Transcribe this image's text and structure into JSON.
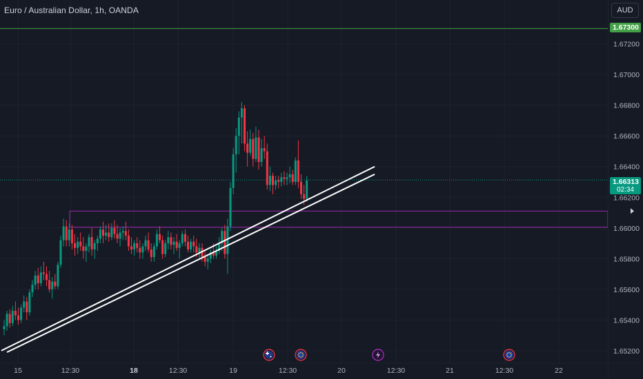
{
  "header": {
    "title": "Euro / Australian Dollar, 1h, OANDA",
    "currency_button": "AUD"
  },
  "price_axis": {
    "labels": [
      "1.67200",
      "1.67000",
      "1.66800",
      "1.66600",
      "1.66400",
      "1.66200",
      "1.66000",
      "1.65800",
      "1.65600",
      "1.65400",
      "1.65200"
    ],
    "alert_price": "1.67300",
    "last_price": "1.66313",
    "bar_countdown": "02:34"
  },
  "time_axis": {
    "labels": [
      {
        "text": "15",
        "bold": false
      },
      {
        "text": "12:30",
        "bold": false
      },
      {
        "text": "18",
        "bold": true
      },
      {
        "text": "12:30",
        "bold": false
      },
      {
        "text": "19",
        "bold": false
      },
      {
        "text": "12:30",
        "bold": false
      },
      {
        "text": "20",
        "bold": false
      },
      {
        "text": "12:30",
        "bold": false
      },
      {
        "text": "21",
        "bold": false
      },
      {
        "text": "12:30",
        "bold": false
      },
      {
        "text": "22",
        "bold": false
      }
    ]
  },
  "colors": {
    "background": "#161a25",
    "up": "#089981",
    "down": "#f23645",
    "alert_line": "#43a047",
    "zone": "#9c27b0",
    "trendline": "#ffffff"
  },
  "events": [
    {
      "icon": "flag-au-icon"
    },
    {
      "icon": "flag-eu-icon"
    },
    {
      "icon": "lightning-icon"
    },
    {
      "icon": "flag-eu-icon"
    }
  ],
  "chart_data": {
    "type": "candlestick",
    "symbol": "EURAUD",
    "interval": "1h",
    "ylim": [
      1.6515,
      1.6745
    ],
    "alert_level": 1.673,
    "last_price": 1.66313,
    "zone": {
      "top": 1.6611,
      "bottom": 1.66005
    },
    "trendlines": [
      {
        "from": {
          "bar": -1,
          "price": 1.652
        },
        "to": {
          "bar": 131,
          "price": 1.664
        }
      },
      {
        "from": {
          "bar": 1,
          "price": 1.6519
        },
        "to": {
          "bar": 131,
          "price": 1.6635
        }
      }
    ],
    "candles": [
      [
        1.6534,
        1.654,
        1.653,
        1.6536
      ],
      [
        1.6536,
        1.6546,
        1.6533,
        1.6544
      ],
      [
        1.6544,
        1.6547,
        1.6535,
        1.6538
      ],
      [
        1.6538,
        1.6549,
        1.6536,
        1.6546
      ],
      [
        1.6546,
        1.6552,
        1.654,
        1.6543
      ],
      [
        1.6543,
        1.6548,
        1.6537,
        1.654
      ],
      [
        1.654,
        1.655,
        1.6538,
        1.6548
      ],
      [
        1.6548,
        1.6556,
        1.6545,
        1.6552
      ],
      [
        1.6552,
        1.6555,
        1.654,
        1.6545
      ],
      [
        1.6545,
        1.656,
        1.6543,
        1.6558
      ],
      [
        1.6558,
        1.6566,
        1.6555,
        1.6563
      ],
      [
        1.6563,
        1.6572,
        1.656,
        1.6569
      ],
      [
        1.6569,
        1.6574,
        1.656,
        1.6564
      ],
      [
        1.6564,
        1.6575,
        1.6562,
        1.6571
      ],
      [
        1.6571,
        1.6578,
        1.6566,
        1.657
      ],
      [
        1.657,
        1.6575,
        1.6562,
        1.6566
      ],
      [
        1.6566,
        1.6572,
        1.6558,
        1.656
      ],
      [
        1.656,
        1.6568,
        1.6554,
        1.6565
      ],
      [
        1.6565,
        1.657,
        1.656,
        1.6562
      ],
      [
        1.6562,
        1.6578,
        1.656,
        1.6576
      ],
      [
        1.6576,
        1.6595,
        1.6574,
        1.6592
      ],
      [
        1.6592,
        1.6606,
        1.6588,
        1.6601
      ],
      [
        1.6601,
        1.6605,
        1.6588,
        1.6592
      ],
      [
        1.6592,
        1.6603,
        1.6588,
        1.6599
      ],
      [
        1.6599,
        1.6602,
        1.6586,
        1.659
      ],
      [
        1.659,
        1.6596,
        1.6582,
        1.6587
      ],
      [
        1.6587,
        1.6594,
        1.6583,
        1.6591
      ],
      [
        1.6591,
        1.6597,
        1.6585,
        1.6588
      ],
      [
        1.6588,
        1.6594,
        1.658,
        1.6585
      ],
      [
        1.6585,
        1.659,
        1.6578,
        1.6588
      ],
      [
        1.6588,
        1.6596,
        1.6584,
        1.6594
      ],
      [
        1.6594,
        1.66,
        1.6582,
        1.6586
      ],
      [
        1.6586,
        1.6592,
        1.658,
        1.659
      ],
      [
        1.659,
        1.6595,
        1.6585,
        1.6593
      ],
      [
        1.6593,
        1.6601,
        1.659,
        1.6599
      ],
      [
        1.6599,
        1.6604,
        1.659,
        1.6595
      ],
      [
        1.6595,
        1.6602,
        1.6592,
        1.6597
      ],
      [
        1.6597,
        1.6603,
        1.6591,
        1.6594
      ],
      [
        1.6594,
        1.6603,
        1.6592,
        1.66
      ],
      [
        1.66,
        1.6605,
        1.6593,
        1.6596
      ],
      [
        1.6596,
        1.6602,
        1.659,
        1.6593
      ],
      [
        1.6593,
        1.66,
        1.6588,
        1.6597
      ],
      [
        1.6597,
        1.6601,
        1.6592,
        1.6598
      ],
      [
        1.6598,
        1.6604,
        1.6592,
        1.6595
      ],
      [
        1.6595,
        1.6599,
        1.6585,
        1.6588
      ],
      [
        1.6588,
        1.6594,
        1.6583,
        1.6586
      ],
      [
        1.6586,
        1.6592,
        1.6582,
        1.659
      ],
      [
        1.659,
        1.6594,
        1.6584,
        1.6587
      ],
      [
        1.6587,
        1.6592,
        1.658,
        1.6584
      ],
      [
        1.6584,
        1.659,
        1.658,
        1.6588
      ],
      [
        1.6588,
        1.6595,
        1.6585,
        1.6592
      ],
      [
        1.6592,
        1.6597,
        1.6584,
        1.6586
      ],
      [
        1.6586,
        1.659,
        1.6578,
        1.6581
      ],
      [
        1.6581,
        1.659,
        1.6578,
        1.6588
      ],
      [
        1.6588,
        1.6599,
        1.6586,
        1.6596
      ],
      [
        1.6596,
        1.6601,
        1.659,
        1.6592
      ],
      [
        1.6592,
        1.6595,
        1.658,
        1.6583
      ],
      [
        1.6583,
        1.6592,
        1.6581,
        1.659
      ],
      [
        1.659,
        1.6598,
        1.6586,
        1.6594
      ],
      [
        1.6594,
        1.6597,
        1.6586,
        1.6589
      ],
      [
        1.6589,
        1.6594,
        1.6583,
        1.6591
      ],
      [
        1.6591,
        1.6596,
        1.6585,
        1.6587
      ],
      [
        1.6587,
        1.6592,
        1.658,
        1.659
      ],
      [
        1.659,
        1.6598,
        1.6588,
        1.6596
      ],
      [
        1.6596,
        1.6599,
        1.6588,
        1.6591
      ],
      [
        1.6591,
        1.6595,
        1.6584,
        1.6586
      ],
      [
        1.6586,
        1.6593,
        1.6584,
        1.6591
      ],
      [
        1.6591,
        1.6595,
        1.6584,
        1.6588
      ],
      [
        1.6588,
        1.6593,
        1.6581,
        1.6584
      ],
      [
        1.6584,
        1.659,
        1.658,
        1.6587
      ],
      [
        1.6587,
        1.659,
        1.6578,
        1.6581
      ],
      [
        1.6581,
        1.6586,
        1.6575,
        1.6578
      ],
      [
        1.6578,
        1.6583,
        1.6573,
        1.658
      ],
      [
        1.658,
        1.6586,
        1.6577,
        1.6584
      ],
      [
        1.6584,
        1.659,
        1.658,
        1.6582
      ],
      [
        1.6582,
        1.6588,
        1.658,
        1.6585
      ],
      [
        1.6585,
        1.6594,
        1.6583,
        1.659
      ],
      [
        1.659,
        1.66,
        1.6585,
        1.6598
      ],
      [
        1.6598,
        1.6602,
        1.658,
        1.6583
      ],
      [
        1.6583,
        1.6606,
        1.657,
        1.6601
      ],
      [
        1.6601,
        1.663,
        1.6598,
        1.6626
      ],
      [
        1.6626,
        1.6652,
        1.6622,
        1.6648
      ],
      [
        1.6648,
        1.6665,
        1.6636,
        1.666
      ],
      [
        1.666,
        1.6676,
        1.6648,
        1.6672
      ],
      [
        1.6672,
        1.6682,
        1.6655,
        1.6678
      ],
      [
        1.6678,
        1.668,
        1.665,
        1.6655
      ],
      [
        1.6655,
        1.6663,
        1.664,
        1.6649
      ],
      [
        1.6649,
        1.6664,
        1.6647,
        1.6658
      ],
      [
        1.6658,
        1.6662,
        1.664,
        1.6645
      ],
      [
        1.6645,
        1.6666,
        1.6643,
        1.6659
      ],
      [
        1.6659,
        1.6664,
        1.6638,
        1.6643
      ],
      [
        1.6643,
        1.6658,
        1.664,
        1.6652
      ],
      [
        1.6652,
        1.666,
        1.6645,
        1.665
      ],
      [
        1.665,
        1.6655,
        1.6625,
        1.6628
      ],
      [
        1.6628,
        1.664,
        1.6624,
        1.6634
      ],
      [
        1.6634,
        1.6636,
        1.6622,
        1.6628
      ],
      [
        1.6628,
        1.6634,
        1.6625,
        1.6631
      ],
      [
        1.6631,
        1.6634,
        1.6626,
        1.663
      ],
      [
        1.663,
        1.6636,
        1.6627,
        1.6633
      ],
      [
        1.6633,
        1.6637,
        1.6628,
        1.6632
      ],
      [
        1.6632,
        1.6636,
        1.6628,
        1.6633
      ],
      [
        1.6633,
        1.664,
        1.6629,
        1.6635
      ],
      [
        1.6635,
        1.6638,
        1.6628,
        1.663
      ],
      [
        1.663,
        1.6646,
        1.6628,
        1.6644
      ],
      [
        1.6644,
        1.6657,
        1.6626,
        1.663
      ],
      [
        1.663,
        1.6635,
        1.6619,
        1.6622
      ],
      [
        1.6622,
        1.6628,
        1.6615,
        1.6619
      ],
      [
        1.6619,
        1.6634,
        1.6617,
        1.6631
      ]
    ]
  }
}
